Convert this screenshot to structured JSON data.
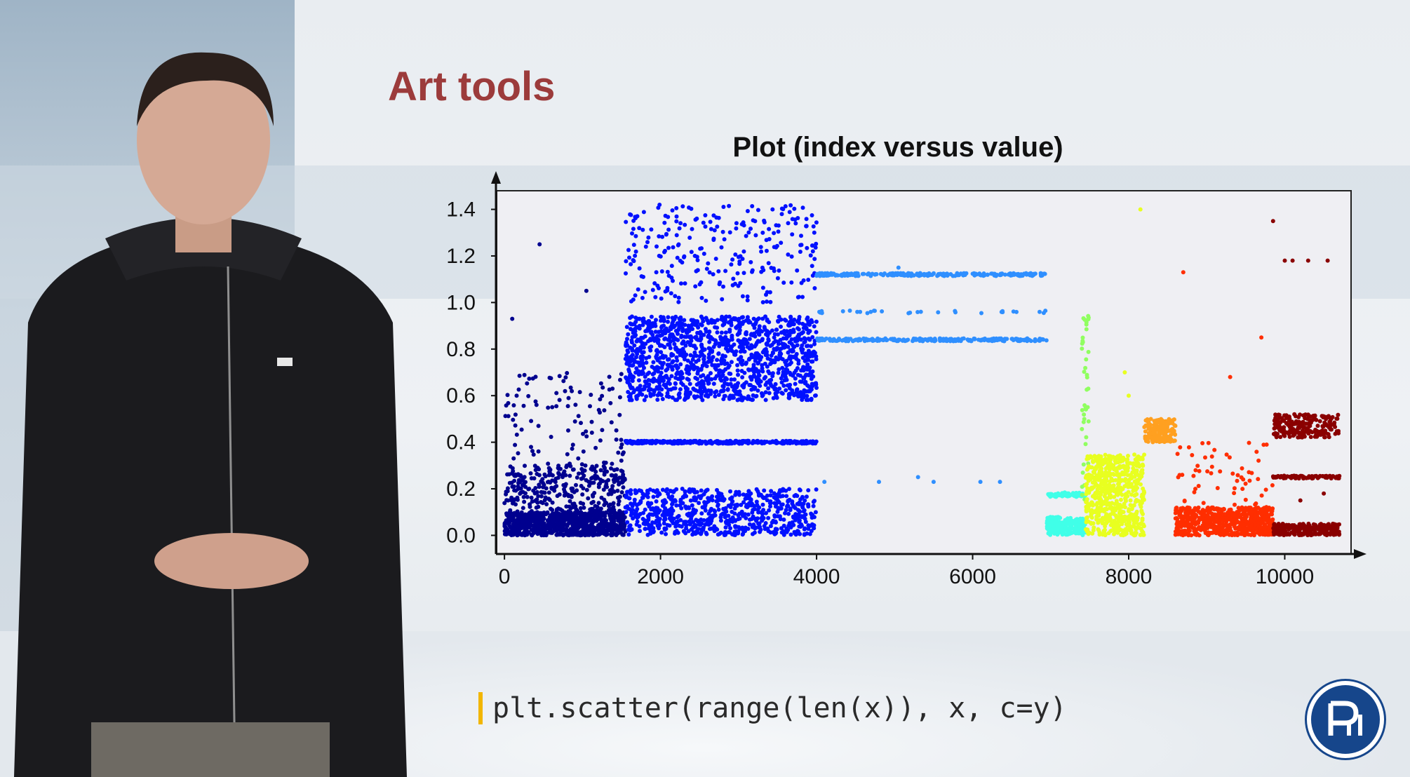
{
  "slide": {
    "title": "Art tools",
    "code": "plt.scatter(range(len(x)), x, c=y)"
  },
  "chart_data": {
    "type": "scatter",
    "title": "Plot (index versus value)",
    "xlabel": "",
    "ylabel": "",
    "xlim": [
      -100,
      10850
    ],
    "ylim": [
      -0.08,
      1.48
    ],
    "x_ticks": [
      "0",
      "2000",
      "4000",
      "6000",
      "8000",
      "10000"
    ],
    "y_ticks": [
      "0.0",
      "0.2",
      "0.4",
      "0.6",
      "0.8",
      "1.0",
      "1.2",
      "1.4"
    ],
    "grid": false,
    "colormap": "jet",
    "groups": [
      {
        "x_range": [
          0,
          1550
        ],
        "color": "#00008f",
        "clusters": [
          {
            "y_min": 0.0,
            "y_max": 0.1,
            "count": 700
          },
          {
            "y_min": 0.0,
            "y_max": 0.3,
            "count": 400
          },
          {
            "y_min": 0.0,
            "y_max": 0.7,
            "count": 180
          }
        ],
        "points": [
          [
            450,
            1.25
          ],
          [
            1050,
            1.05
          ],
          [
            100,
            0.93
          ]
        ]
      },
      {
        "x_range": [
          1550,
          4000
        ],
        "color": "#0010ff",
        "clusters": [
          {
            "y_min": 0.58,
            "y_max": 0.94,
            "count": 1300
          },
          {
            "y_min": 0.4,
            "y_max": 0.4,
            "count": 300
          },
          {
            "y_min": 0.0,
            "y_max": 0.2,
            "count": 700
          },
          {
            "y_min": 1.0,
            "y_max": 1.42,
            "count": 260
          }
        ]
      },
      {
        "x_range": [
          4000,
          6950
        ],
        "color": "#2f8fff",
        "clusters": [
          {
            "y_min": 1.12,
            "y_max": 1.12,
            "count": 240
          },
          {
            "y_min": 0.96,
            "y_max": 0.96,
            "count": 30
          },
          {
            "y_min": 0.84,
            "y_max": 0.84,
            "count": 240
          }
        ],
        "points": [
          [
            4100,
            0.23
          ],
          [
            4800,
            0.23
          ],
          [
            5300,
            0.25
          ],
          [
            5500,
            0.23
          ],
          [
            6100,
            0.23
          ],
          [
            6350,
            0.23
          ],
          [
            5050,
            1.15
          ]
        ]
      },
      {
        "x_range": [
          6950,
          7450
        ],
        "color": "#40ffe8",
        "clusters": [
          {
            "y_min": 0.0,
            "y_max": 0.08,
            "count": 220
          },
          {
            "y_min": 0.17,
            "y_max": 0.18,
            "count": 80
          }
        ]
      },
      {
        "x_range": [
          7400,
          7500
        ],
        "color": "#90ff60",
        "clusters": [
          {
            "y_min": 0.15,
            "y_max": 1.0,
            "count": 40
          }
        ]
      },
      {
        "x_range": [
          7450,
          8200
        ],
        "color": "#e8ff20",
        "clusters": [
          {
            "y_min": 0.0,
            "y_max": 0.35,
            "count": 650
          }
        ],
        "points": [
          [
            7950,
            0.7
          ],
          [
            8000,
            0.6
          ],
          [
            8150,
            1.4
          ]
        ]
      },
      {
        "x_range": [
          8200,
          8600
        ],
        "color": "#ffa020",
        "clusters": [
          {
            "y_min": 0.4,
            "y_max": 0.5,
            "count": 180
          }
        ]
      },
      {
        "x_range": [
          8600,
          9850
        ],
        "color": "#ff2e00",
        "clusters": [
          {
            "y_min": 0.0,
            "y_max": 0.12,
            "count": 650
          },
          {
            "y_min": 0.1,
            "y_max": 0.4,
            "count": 60
          }
        ],
        "points": [
          [
            8700,
            1.13
          ],
          [
            9300,
            0.68
          ],
          [
            9700,
            0.85
          ]
        ]
      },
      {
        "x_range": [
          9850,
          10700
        ],
        "color": "#8a0000",
        "clusters": [
          {
            "y_min": 0.0,
            "y_max": 0.05,
            "count": 240
          },
          {
            "y_min": 0.25,
            "y_max": 0.25,
            "count": 80
          },
          {
            "y_min": 0.42,
            "y_max": 0.52,
            "count": 200
          }
        ],
        "points": [
          [
            9850,
            1.35
          ],
          [
            10000,
            1.18
          ],
          [
            10100,
            1.18
          ],
          [
            10300,
            1.18
          ],
          [
            10550,
            1.18
          ],
          [
            10200,
            0.15
          ],
          [
            10500,
            0.18
          ]
        ]
      }
    ]
  },
  "colors": {
    "title_red": "#9c3b3b",
    "code_marker": "#f2b600",
    "logo_blue": "#16468b",
    "plot_bg": "#efeff3"
  },
  "icons": {
    "logo": "hse-logo-icon"
  }
}
